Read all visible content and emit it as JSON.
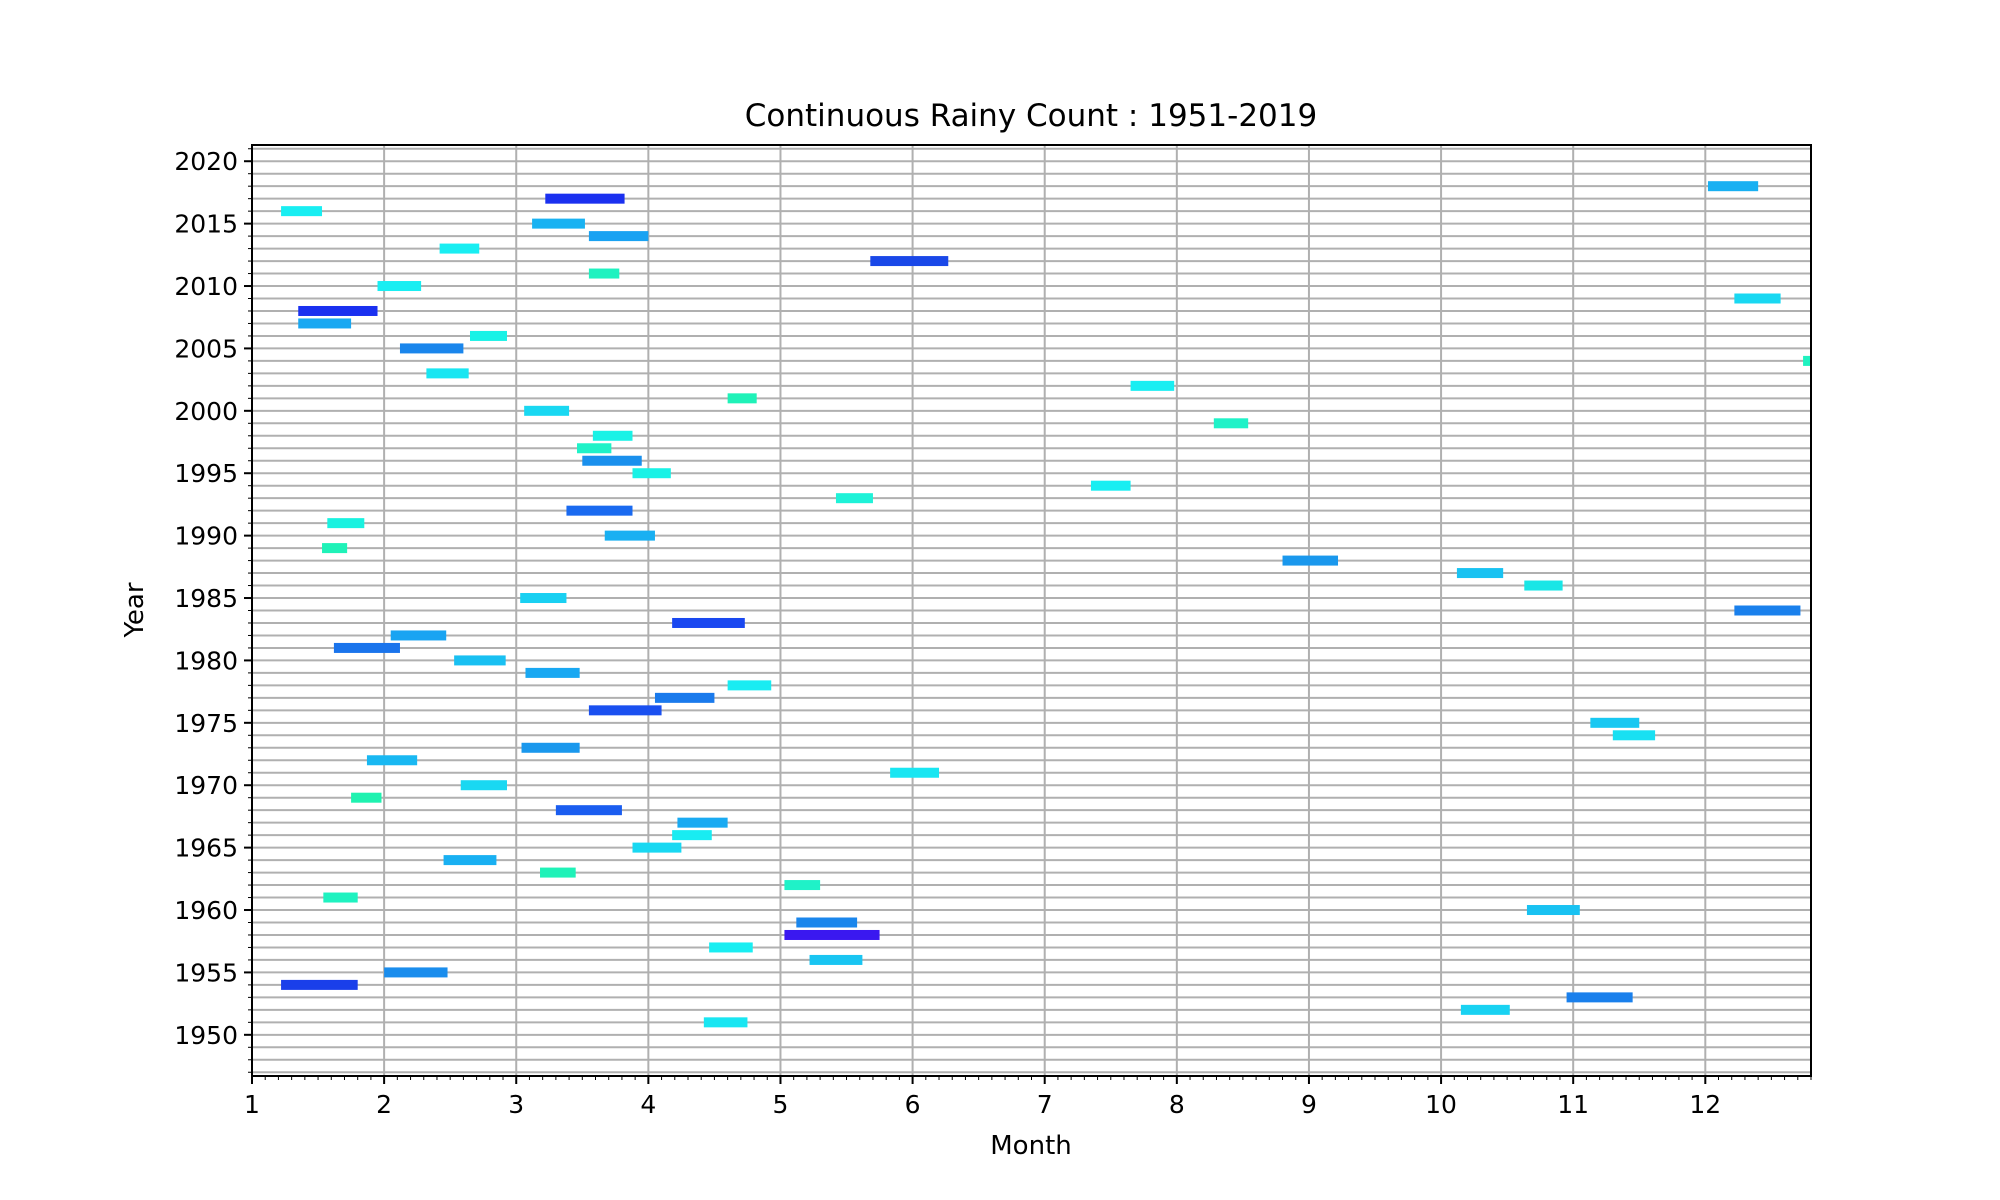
{
  "chart_data": {
    "type": "bar",
    "subtype": "horizontal-segments",
    "title": "Continuous Rainy Count : 1951-2019",
    "xlabel": "Month",
    "ylabel": "Year",
    "xlim": [
      1,
      12.8
    ],
    "ylim": [
      1946.7,
      2021.3
    ],
    "xticks": [
      1,
      2,
      3,
      4,
      5,
      6,
      7,
      8,
      9,
      10,
      11,
      12
    ],
    "yticks": [
      1950,
      1955,
      1960,
      1965,
      1970,
      1975,
      1980,
      1985,
      1990,
      1995,
      2000,
      2005,
      2010,
      2015,
      2020
    ],
    "grid": true,
    "legend": "none",
    "segments": [
      {
        "year": 1951,
        "start": 4.42,
        "end": 4.75,
        "color": "#19e6f2"
      },
      {
        "year": 1952,
        "start": 10.15,
        "end": 10.52,
        "color": "#19d2f2"
      },
      {
        "year": 1953,
        "start": 10.95,
        "end": 11.45,
        "color": "#1a80ec"
      },
      {
        "year": 1954,
        "start": 1.22,
        "end": 1.8,
        "color": "#1a3fea"
      },
      {
        "year": 1955,
        "start": 2.0,
        "end": 2.48,
        "color": "#1a8ded"
      },
      {
        "year": 1956,
        "start": 5.22,
        "end": 5.62,
        "color": "#19c5f2"
      },
      {
        "year": 1957,
        "start": 4.46,
        "end": 4.79,
        "color": "#19eef2"
      },
      {
        "year": 1958,
        "start": 5.03,
        "end": 5.75,
        "color": "#3a18f0"
      },
      {
        "year": 1959,
        "start": 5.12,
        "end": 5.58,
        "color": "#1a86ec"
      },
      {
        "year": 1960,
        "start": 10.65,
        "end": 11.05,
        "color": "#19c2f2"
      },
      {
        "year": 1961,
        "start": 1.54,
        "end": 1.8,
        "color": "#1ff2c0"
      },
      {
        "year": 1962,
        "start": 5.03,
        "end": 5.3,
        "color": "#1ff2c8"
      },
      {
        "year": 1963,
        "start": 3.18,
        "end": 3.45,
        "color": "#1ff2b8"
      },
      {
        "year": 1964,
        "start": 2.45,
        "end": 2.85,
        "color": "#19b0f2"
      },
      {
        "year": 1965,
        "start": 3.88,
        "end": 4.25,
        "color": "#19d8f2"
      },
      {
        "year": 1966,
        "start": 4.18,
        "end": 4.48,
        "color": "#19ecf2"
      },
      {
        "year": 1967,
        "start": 4.22,
        "end": 4.6,
        "color": "#19aaf2"
      },
      {
        "year": 1968,
        "start": 3.3,
        "end": 3.8,
        "color": "#1a5df0"
      },
      {
        "year": 1969,
        "start": 1.75,
        "end": 1.98,
        "color": "#1ff2b0"
      },
      {
        "year": 1970,
        "start": 2.58,
        "end": 2.93,
        "color": "#19d8f2"
      },
      {
        "year": 1971,
        "start": 5.83,
        "end": 6.2,
        "color": "#19e6f2"
      },
      {
        "year": 1972,
        "start": 1.87,
        "end": 2.25,
        "color": "#19b8f2"
      },
      {
        "year": 1973,
        "start": 3.04,
        "end": 3.48,
        "color": "#1a98ed"
      },
      {
        "year": 1974,
        "start": 11.3,
        "end": 11.62,
        "color": "#19e0f2"
      },
      {
        "year": 1975,
        "start": 11.13,
        "end": 11.5,
        "color": "#19c8f2"
      },
      {
        "year": 1976,
        "start": 3.55,
        "end": 4.1,
        "color": "#1a50f0"
      },
      {
        "year": 1977,
        "start": 4.05,
        "end": 4.5,
        "color": "#1a7aec"
      },
      {
        "year": 1978,
        "start": 4.6,
        "end": 4.93,
        "color": "#19ecf2"
      },
      {
        "year": 1979,
        "start": 3.07,
        "end": 3.48,
        "color": "#19a8f2"
      },
      {
        "year": 1980,
        "start": 2.53,
        "end": 2.92,
        "color": "#19c0f2"
      },
      {
        "year": 1981,
        "start": 1.62,
        "end": 2.12,
        "color": "#1a74ec"
      },
      {
        "year": 1982,
        "start": 2.05,
        "end": 2.47,
        "color": "#19a4f2"
      },
      {
        "year": 1983,
        "start": 4.18,
        "end": 4.73,
        "color": "#1a48f0"
      },
      {
        "year": 1984,
        "start": 12.22,
        "end": 12.72,
        "color": "#1a80ec"
      },
      {
        "year": 1985,
        "start": 3.03,
        "end": 3.38,
        "color": "#19d0f2"
      },
      {
        "year": 1986,
        "start": 10.63,
        "end": 10.92,
        "color": "#19e6e6"
      },
      {
        "year": 1987,
        "start": 10.12,
        "end": 10.47,
        "color": "#19c2f2"
      },
      {
        "year": 1988,
        "start": 8.8,
        "end": 9.22,
        "color": "#1a98ed"
      },
      {
        "year": 1989,
        "start": 1.53,
        "end": 1.72,
        "color": "#1ff2b8"
      },
      {
        "year": 1990,
        "start": 3.67,
        "end": 4.05,
        "color": "#19b0f2"
      },
      {
        "year": 1991,
        "start": 1.57,
        "end": 1.85,
        "color": "#19f2e0"
      },
      {
        "year": 1992,
        "start": 3.38,
        "end": 3.88,
        "color": "#1a6af0"
      },
      {
        "year": 1993,
        "start": 5.42,
        "end": 5.7,
        "color": "#1ff2d8"
      },
      {
        "year": 1994,
        "start": 7.35,
        "end": 7.65,
        "color": "#19eef2"
      },
      {
        "year": 1995,
        "start": 3.88,
        "end": 4.17,
        "color": "#19f2e6"
      },
      {
        "year": 1996,
        "start": 3.5,
        "end": 3.95,
        "color": "#1a90ed"
      },
      {
        "year": 1997,
        "start": 3.46,
        "end": 3.72,
        "color": "#1ff2c8"
      },
      {
        "year": 1998,
        "start": 3.58,
        "end": 3.88,
        "color": "#19f2e6"
      },
      {
        "year": 1999,
        "start": 8.28,
        "end": 8.54,
        "color": "#1ff2c8"
      },
      {
        "year": 2000,
        "start": 3.06,
        "end": 3.4,
        "color": "#19d8f2"
      },
      {
        "year": 2001,
        "start": 4.6,
        "end": 4.82,
        "color": "#1ff2b8"
      },
      {
        "year": 2002,
        "start": 7.65,
        "end": 7.98,
        "color": "#19eef2"
      },
      {
        "year": 2004,
        "start": 12.74,
        "end": 12.8,
        "color": "#1ff2c0"
      },
      {
        "year": 2003,
        "start": 2.32,
        "end": 2.64,
        "color": "#19e6f2"
      },
      {
        "year": 2005,
        "start": 2.12,
        "end": 2.6,
        "color": "#1a86ec"
      },
      {
        "year": 2006,
        "start": 2.65,
        "end": 2.93,
        "color": "#19f2e6"
      },
      {
        "year": 2007,
        "start": 1.35,
        "end": 1.75,
        "color": "#19a8f2"
      },
      {
        "year": 2008,
        "start": 1.35,
        "end": 1.95,
        "color": "#1a30f0"
      },
      {
        "year": 2009,
        "start": 12.22,
        "end": 12.57,
        "color": "#19d8f2"
      },
      {
        "year": 2010,
        "start": 1.95,
        "end": 2.28,
        "color": "#19eef2"
      },
      {
        "year": 2011,
        "start": 3.55,
        "end": 3.78,
        "color": "#1ff2c0"
      },
      {
        "year": 2012,
        "start": 5.68,
        "end": 6.27,
        "color": "#1a48e8"
      },
      {
        "year": 2013,
        "start": 2.42,
        "end": 2.72,
        "color": "#19eef2"
      },
      {
        "year": 2014,
        "start": 3.55,
        "end": 4.0,
        "color": "#19a2f2"
      },
      {
        "year": 2015,
        "start": 3.12,
        "end": 3.52,
        "color": "#19b2f2"
      },
      {
        "year": 2016,
        "start": 1.22,
        "end": 1.53,
        "color": "#19eef2"
      },
      {
        "year": 2017,
        "start": 3.22,
        "end": 3.82,
        "color": "#1a30f0"
      },
      {
        "year": 2018,
        "start": 12.02,
        "end": 12.4,
        "color": "#19b0f2"
      }
    ]
  }
}
